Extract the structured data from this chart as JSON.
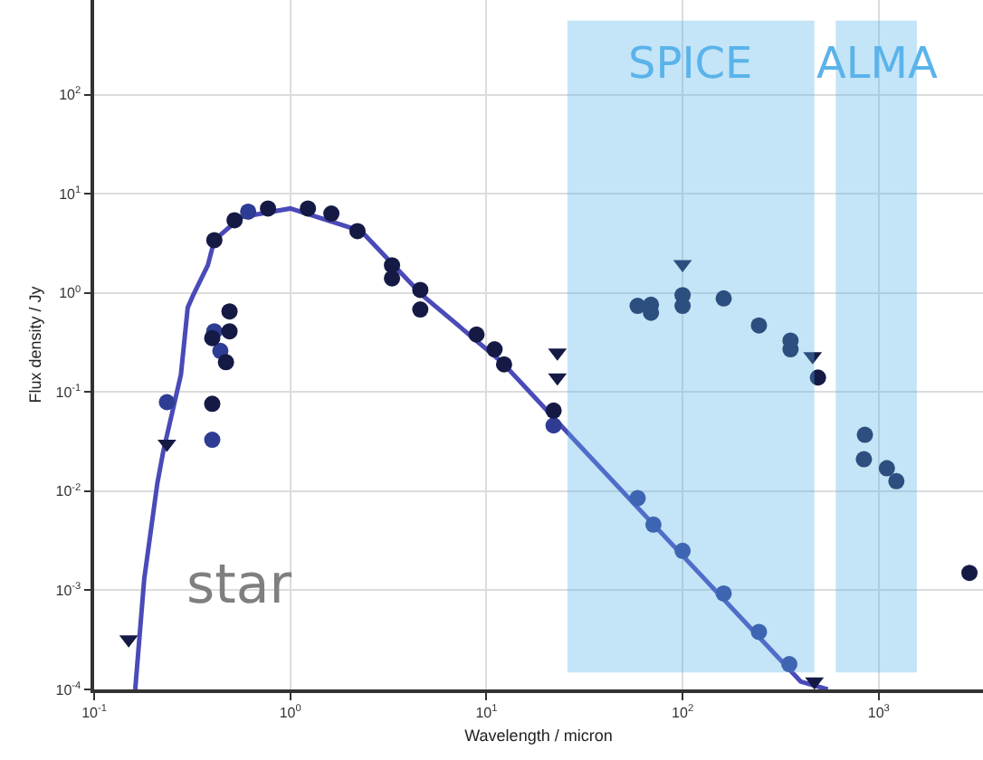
{
  "chart_data": {
    "type": "scatter",
    "xlabel": "Wavelength / micron",
    "ylabel": "Flux density / Jy",
    "log": "xy",
    "grid": true,
    "legend": false,
    "xlim": [
      0.1,
      3400
    ],
    "ylim": [
      0.0001,
      900
    ],
    "xticks": [
      {
        "value": 0.1,
        "label": "10$^{-1}$"
      },
      {
        "value": 1,
        "label": "10$^{0}$"
      },
      {
        "value": 10,
        "label": "10$^{1}$"
      },
      {
        "value": 100,
        "label": "10$^{2}$"
      },
      {
        "value": 1000,
        "label": "10$^{3}$"
      }
    ],
    "yticks": [
      {
        "value": 0.0001,
        "label": "10$^{-4}$"
      },
      {
        "value": 0.001,
        "label": "10$^{-3}$"
      },
      {
        "value": 0.01,
        "label": "10$^{-2}$"
      },
      {
        "value": 0.1,
        "label": "10$^{-1}$"
      },
      {
        "value": 1,
        "label": "10$^{0}$"
      },
      {
        "value": 10,
        "label": "10$^{1}$"
      },
      {
        "value": 100,
        "label": "10$^{2}$"
      }
    ],
    "series": [
      {
        "type": "line",
        "color": "#4a4ab8",
        "line_style": "solid",
        "marker": "none",
        "x": [
          0.162,
          0.18,
          0.21,
          0.225,
          0.277,
          0.3,
          0.32,
          0.38,
          0.41,
          0.56,
          1.0,
          2.3,
          4.7,
          12,
          28,
          400,
          550
        ],
        "values": [
          0.0001,
          0.0013,
          0.012,
          0.025,
          0.15,
          0.71,
          0.95,
          1.9,
          3.4,
          5.8,
          7.1,
          4.2,
          0.95,
          0.2,
          0.033,
          0.00012,
          0.0001
        ]
      },
      {
        "type": "scatter",
        "color": "#2e3c94",
        "marker": "circle",
        "x": [
          0.235,
          0.4,
          0.41,
          0.44,
          0.61,
          22,
          59,
          71,
          100,
          162,
          245,
          350
        ],
        "values": [
          0.079,
          0.033,
          0.41,
          0.26,
          6.6,
          0.046,
          0.0085,
          0.0046,
          0.0025,
          0.00093,
          0.00038,
          0.00018
        ]
      },
      {
        "type": "scatter",
        "color": "#151a45",
        "marker": "circle",
        "x": [
          0.4,
          0.41,
          0.52,
          0.77,
          1.23,
          1.62,
          2.2,
          3.3,
          3.3,
          4.6,
          4.6,
          8.9,
          11,
          12.3,
          0.49,
          0.49,
          0.47,
          0.4,
          22,
          59,
          69,
          69,
          100,
          100,
          162,
          245,
          355,
          355,
          490,
          850,
          840,
          1100,
          1230,
          2900
        ],
        "values": [
          0.35,
          3.4,
          5.4,
          7.1,
          7.1,
          6.3,
          4.2,
          1.9,
          1.4,
          1.07,
          0.68,
          0.38,
          0.27,
          0.19,
          0.65,
          0.41,
          0.2,
          0.076,
          0.065,
          0.74,
          0.76,
          0.63,
          0.95,
          0.74,
          0.88,
          0.47,
          0.33,
          0.27,
          0.14,
          0.037,
          0.021,
          0.017,
          0.0126,
          0.0015
        ]
      },
      {
        "type": "scatter",
        "color": "#151a45",
        "marker": "triangle",
        "x": [
          0.15,
          0.235,
          23,
          23,
          100,
          460,
          470
        ],
        "values": [
          0.00032,
          0.03,
          0.25,
          0.14,
          1.95,
          0.23,
          0.00012
        ]
      }
    ],
    "bands": [
      {
        "axis": "x",
        "from": 27,
        "to": 450,
        "label": "SPICE",
        "color": "#5ab3ea"
      },
      {
        "axis": "x",
        "from": 630,
        "to": 1500,
        "label": "ALMA",
        "color": "#5ab3ea"
      }
    ],
    "annotations": [
      "star"
    ]
  }
}
